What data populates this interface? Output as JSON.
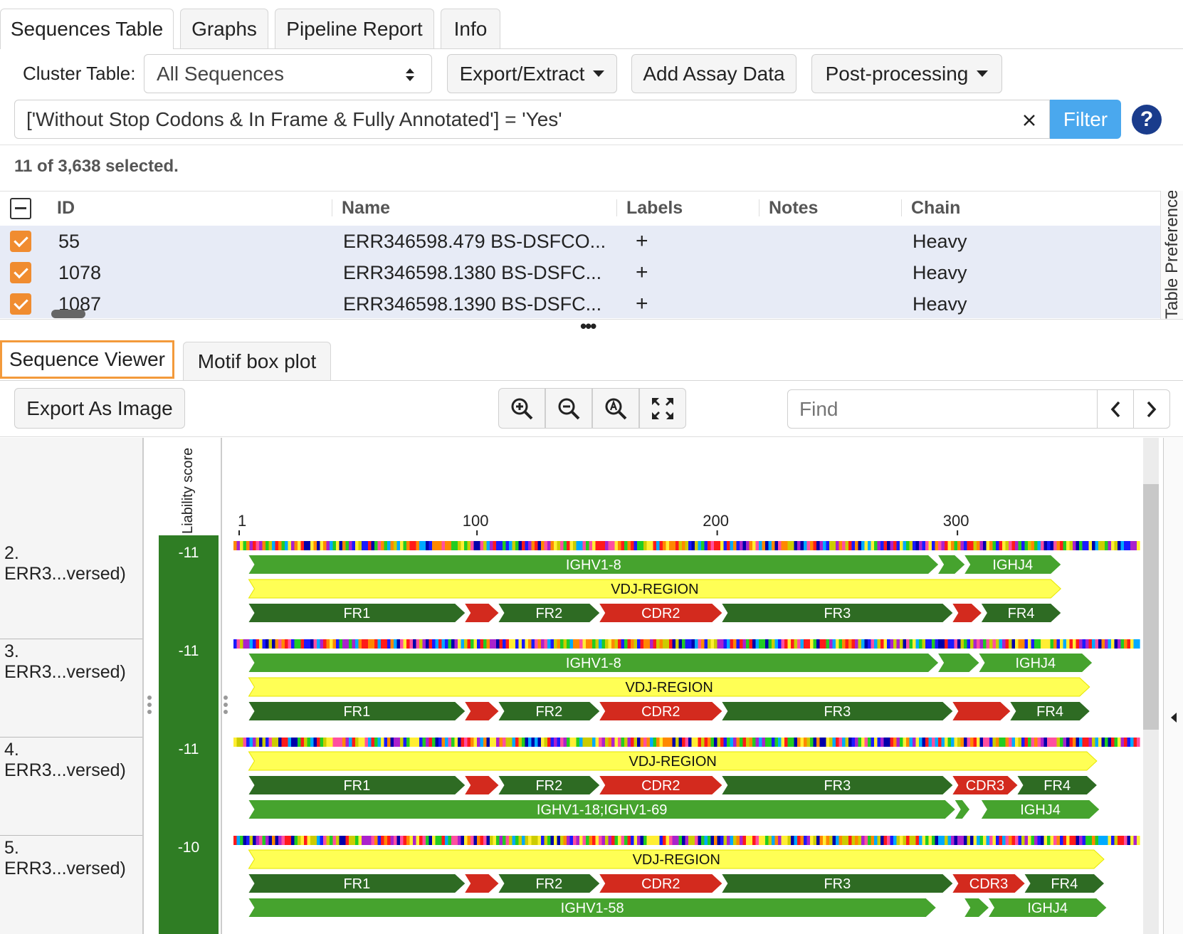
{
  "top_tabs": [
    "Sequences Table",
    "Graphs",
    "Pipeline Report",
    "Info"
  ],
  "toolbar": {
    "cluster_label": "Cluster Table:",
    "cluster_value": "All Sequences",
    "export_label": "Export/Extract",
    "assay_label": "Add Assay Data",
    "post_label": "Post-processing"
  },
  "filter": {
    "query": "['Without Stop Codons & In Frame & Fully Annotated'] = 'Yes'",
    "button": "Filter",
    "help": "?"
  },
  "selection": "11 of 3,638 selected.",
  "grid": {
    "headers": [
      "ID",
      "Name",
      "Labels",
      "Notes",
      "Chain"
    ],
    "rows": [
      {
        "id": "55",
        "name": "ERR346598.479 BS-DSFCO...",
        "labels": "+",
        "chain": "Heavy"
      },
      {
        "id": "1078",
        "name": "ERR346598.1380 BS-DSFC...",
        "labels": "+",
        "chain": "Heavy"
      },
      {
        "id": "1087",
        "name": "ERR346598.1390 BS-DSFC...",
        "labels": "+",
        "chain": "Heavy"
      }
    ],
    "side_label": "Table Preferences",
    "splitter": "•••"
  },
  "bottom_tabs": [
    "Sequence Viewer",
    "Motif box plot"
  ],
  "viewer_toolbar": {
    "export_image": "Export As Image",
    "find_placeholder": "Find"
  },
  "icons": {
    "zoom_in": "zoom-in-icon",
    "zoom_out": "zoom-out-icon",
    "zoom_reset": "zoom-reset-icon",
    "fit": "fit-screen-icon"
  },
  "colors": {
    "accent_orange": "#f08c30",
    "filter_blue": "#4aa8ee",
    "score_green": "#2f7d24",
    "gene_green": "#46a32e",
    "fr_dark": "#2e6b23",
    "cdr_red": "#d32a1e",
    "vdj_yellow": "#ffff55"
  },
  "viewer": {
    "score_header": "Liability score",
    "ruler": [
      "1",
      "100",
      "200",
      "300"
    ],
    "sequences": [
      {
        "name": "2. ERR3...versed)",
        "score": "-11",
        "features": [
          {
            "label": "IGHV1-8",
            "kind": "gene",
            "start": 5,
            "end": 292
          },
          {
            "label": "",
            "kind": "gene",
            "start": 292,
            "end": 303
          },
          {
            "label": "IGHJ4",
            "kind": "gene",
            "start": 303,
            "end": 343
          },
          {
            "label": "VDJ-REGION",
            "kind": "vdj",
            "start": 5,
            "end": 343
          },
          {
            "label": "FR1",
            "kind": "fr",
            "start": 5,
            "end": 95
          },
          {
            "label": "",
            "kind": "cdr",
            "start": 95,
            "end": 109
          },
          {
            "label": "FR2",
            "kind": "fr",
            "start": 109,
            "end": 151
          },
          {
            "label": "CDR2",
            "kind": "cdr",
            "start": 151,
            "end": 202
          },
          {
            "label": "FR3",
            "kind": "fr",
            "start": 202,
            "end": 298
          },
          {
            "label": "",
            "kind": "cdr",
            "start": 298,
            "end": 310
          },
          {
            "label": "FR4",
            "kind": "fr",
            "start": 310,
            "end": 343
          }
        ]
      },
      {
        "name": "3. ERR3...versed)",
        "score": "-11",
        "features": [
          {
            "label": "IGHV1-8",
            "kind": "gene",
            "start": 5,
            "end": 292
          },
          {
            "label": "",
            "kind": "gene",
            "start": 292,
            "end": 309
          },
          {
            "label": "IGHJ4",
            "kind": "gene",
            "start": 309,
            "end": 356
          },
          {
            "label": "VDJ-REGION",
            "kind": "vdj",
            "start": 5,
            "end": 355
          },
          {
            "label": "FR1",
            "kind": "fr",
            "start": 5,
            "end": 95
          },
          {
            "label": "",
            "kind": "cdr",
            "start": 95,
            "end": 109
          },
          {
            "label": "FR2",
            "kind": "fr",
            "start": 109,
            "end": 151
          },
          {
            "label": "CDR2",
            "kind": "cdr",
            "start": 151,
            "end": 202
          },
          {
            "label": "FR3",
            "kind": "fr",
            "start": 202,
            "end": 298
          },
          {
            "label": "",
            "kind": "cdr",
            "start": 298,
            "end": 322
          },
          {
            "label": "FR4",
            "kind": "fr",
            "start": 322,
            "end": 355
          }
        ]
      },
      {
        "name": "4. ERR3...versed)",
        "score": "-11",
        "features": [
          {
            "label": "VDJ-REGION",
            "kind": "vdj",
            "start": 5,
            "end": 358
          },
          {
            "label": "FR1",
            "kind": "fr",
            "start": 5,
            "end": 95
          },
          {
            "label": "",
            "kind": "cdr",
            "start": 95,
            "end": 109
          },
          {
            "label": "FR2",
            "kind": "fr",
            "start": 109,
            "end": 151
          },
          {
            "label": "CDR2",
            "kind": "cdr",
            "start": 151,
            "end": 202
          },
          {
            "label": "FR3",
            "kind": "fr",
            "start": 202,
            "end": 298
          },
          {
            "label": "CDR3",
            "kind": "cdr",
            "start": 298,
            "end": 325
          },
          {
            "label": "FR4",
            "kind": "fr",
            "start": 325,
            "end": 358
          },
          {
            "label": "IGHV1-18;IGHV1-69",
            "kind": "gene",
            "start": 5,
            "end": 299
          },
          {
            "label": "",
            "kind": "gene",
            "start": 299,
            "end": 305
          },
          {
            "label": "IGHJ4",
            "kind": "gene",
            "start": 310,
            "end": 359
          }
        ]
      },
      {
        "name": "5. ERR3...versed)",
        "score": "-10",
        "features": [
          {
            "label": "VDJ-REGION",
            "kind": "vdj",
            "start": 5,
            "end": 361
          },
          {
            "label": "FR1",
            "kind": "fr",
            "start": 5,
            "end": 95
          },
          {
            "label": "",
            "kind": "cdr",
            "start": 95,
            "end": 109
          },
          {
            "label": "FR2",
            "kind": "fr",
            "start": 109,
            "end": 151
          },
          {
            "label": "CDR2",
            "kind": "cdr",
            "start": 151,
            "end": 202
          },
          {
            "label": "FR3",
            "kind": "fr",
            "start": 202,
            "end": 298
          },
          {
            "label": "CDR3",
            "kind": "cdr",
            "start": 298,
            "end": 328
          },
          {
            "label": "FR4",
            "kind": "fr",
            "start": 328,
            "end": 361
          },
          {
            "label": "IGHV1-58",
            "kind": "gene",
            "start": 5,
            "end": 291
          },
          {
            "label": "",
            "kind": "gene",
            "start": 303,
            "end": 313
          },
          {
            "label": "IGHJ4",
            "kind": "gene",
            "start": 313,
            "end": 362
          }
        ]
      }
    ]
  }
}
